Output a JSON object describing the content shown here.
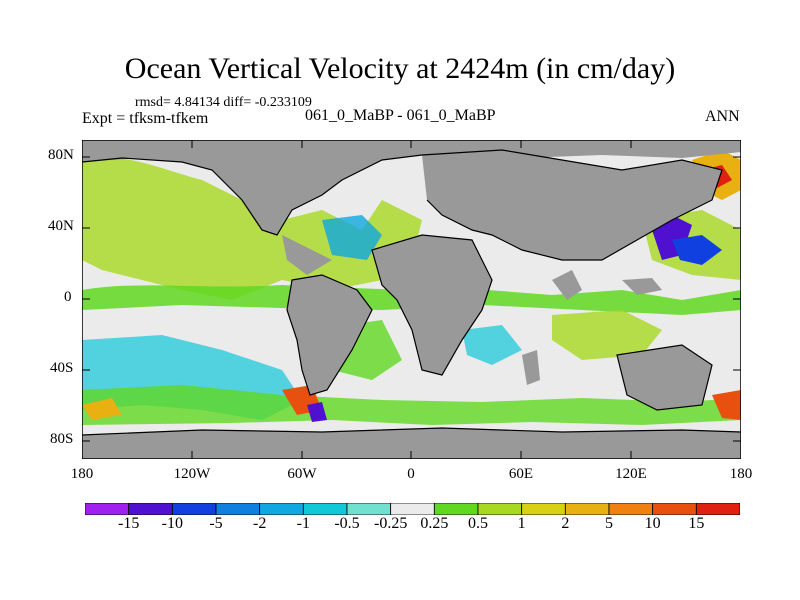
{
  "title": "Ocean Vertical Velocity at 2424m (in cm/day)",
  "stats": "rmsd= 4.84134 diff= -0.233109",
  "experiment": "Expt = tfksm-tfkem",
  "subtitle": "061_0_MaBP - 061_0_MaBP",
  "season": "ANN",
  "y_axis_labels": [
    "80N",
    "40N",
    "0",
    "40S",
    "80S"
  ],
  "x_axis_labels": [
    "180",
    "120W",
    "60W",
    "0",
    "60E",
    "120E",
    "180"
  ],
  "colorbar": {
    "labels": [
      "-15",
      "-10",
      "-5",
      "-2",
      "-1",
      "-0.5",
      "-0.25",
      "0.25",
      "0.5",
      "1",
      "2",
      "5",
      "10",
      "15"
    ],
    "colors": [
      "#a020f0",
      "#5010d0",
      "#1040e0",
      "#1080e0",
      "#10a8e0",
      "#10c8d8",
      "#70e0d0",
      "#ebebeb",
      "#60d820",
      "#a8d820",
      "#d8d010",
      "#e8b010",
      "#f08010",
      "#e85010",
      "#e02010"
    ]
  },
  "land_color": "#999999",
  "ocean_background": "#ebebeb"
}
